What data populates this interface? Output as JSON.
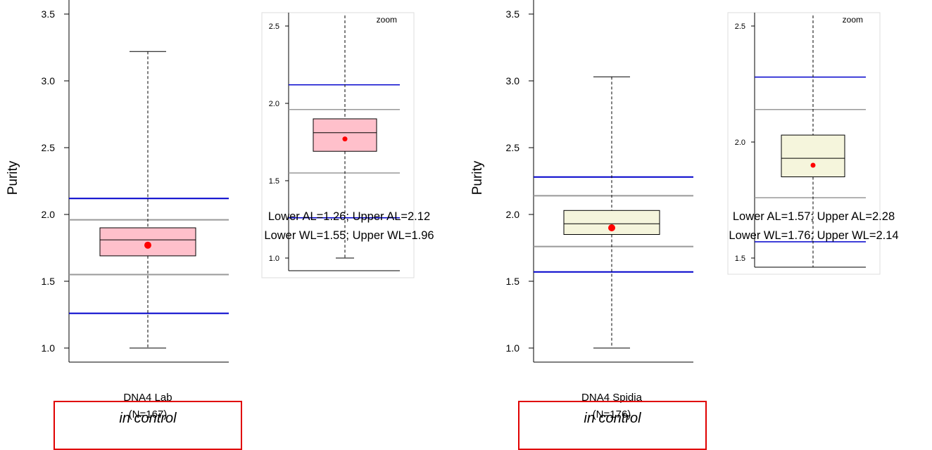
{
  "chart_data": [
    {
      "type": "box",
      "ylabel": "Purity",
      "ylim": [
        0.95,
        3.6
      ],
      "yticks": [
        "1.0",
        "1.5",
        "2.0",
        "2.5",
        "3.0",
        "3.5"
      ],
      "category": "DNA4 Lab",
      "n_label": "(N=167)",
      "box": {
        "min": 1.0,
        "q1": 1.69,
        "median": 1.81,
        "q3": 1.9,
        "max": 3.22,
        "mean": 1.77
      },
      "limits": {
        "lower_al": 1.26,
        "upper_al": 2.12,
        "lower_wl": 1.55,
        "upper_wl": 1.96
      },
      "box_color": "#ffc0cb",
      "zoom": {
        "label": "zoom",
        "ylim": [
          0.95,
          2.58
        ],
        "yticks": [
          "1.0",
          "1.5",
          "2.0",
          "2.5"
        ]
      },
      "limits_text": [
        "Lower AL=1.26; Upper AL=2.12",
        "Lower WL=1.55; Upper WL=1.96"
      ],
      "status": "in control"
    },
    {
      "type": "box",
      "ylabel": "Purity",
      "ylim": [
        0.95,
        3.6
      ],
      "yticks": [
        "1.0",
        "1.5",
        "2.0",
        "2.5",
        "3.0",
        "3.5"
      ],
      "category": "DNA4 Spidia",
      "n_label": "(N=176)",
      "box": {
        "min": 1.0,
        "q1": 1.85,
        "median": 1.93,
        "q3": 2.03,
        "max": 3.03,
        "mean": 1.9
      },
      "limits": {
        "lower_al": 1.57,
        "upper_al": 2.28,
        "lower_wl": 1.76,
        "upper_wl": 2.14
      },
      "box_color": "#f5f5dc",
      "zoom": {
        "label": "zoom",
        "ylim": [
          1.46,
          2.58
        ],
        "yticks": [
          "1.5",
          "2.0",
          "2.5"
        ]
      },
      "limits_text": [
        "Lower AL=1.57; Upper AL=2.28",
        "Lower WL=1.76; Upper WL=2.14"
      ],
      "status": "in control"
    }
  ],
  "colors": {
    "action_limit": "#0000cc",
    "warning_limit": "#999999",
    "mean_point": "#ff0000",
    "status_border": "#e00000"
  }
}
